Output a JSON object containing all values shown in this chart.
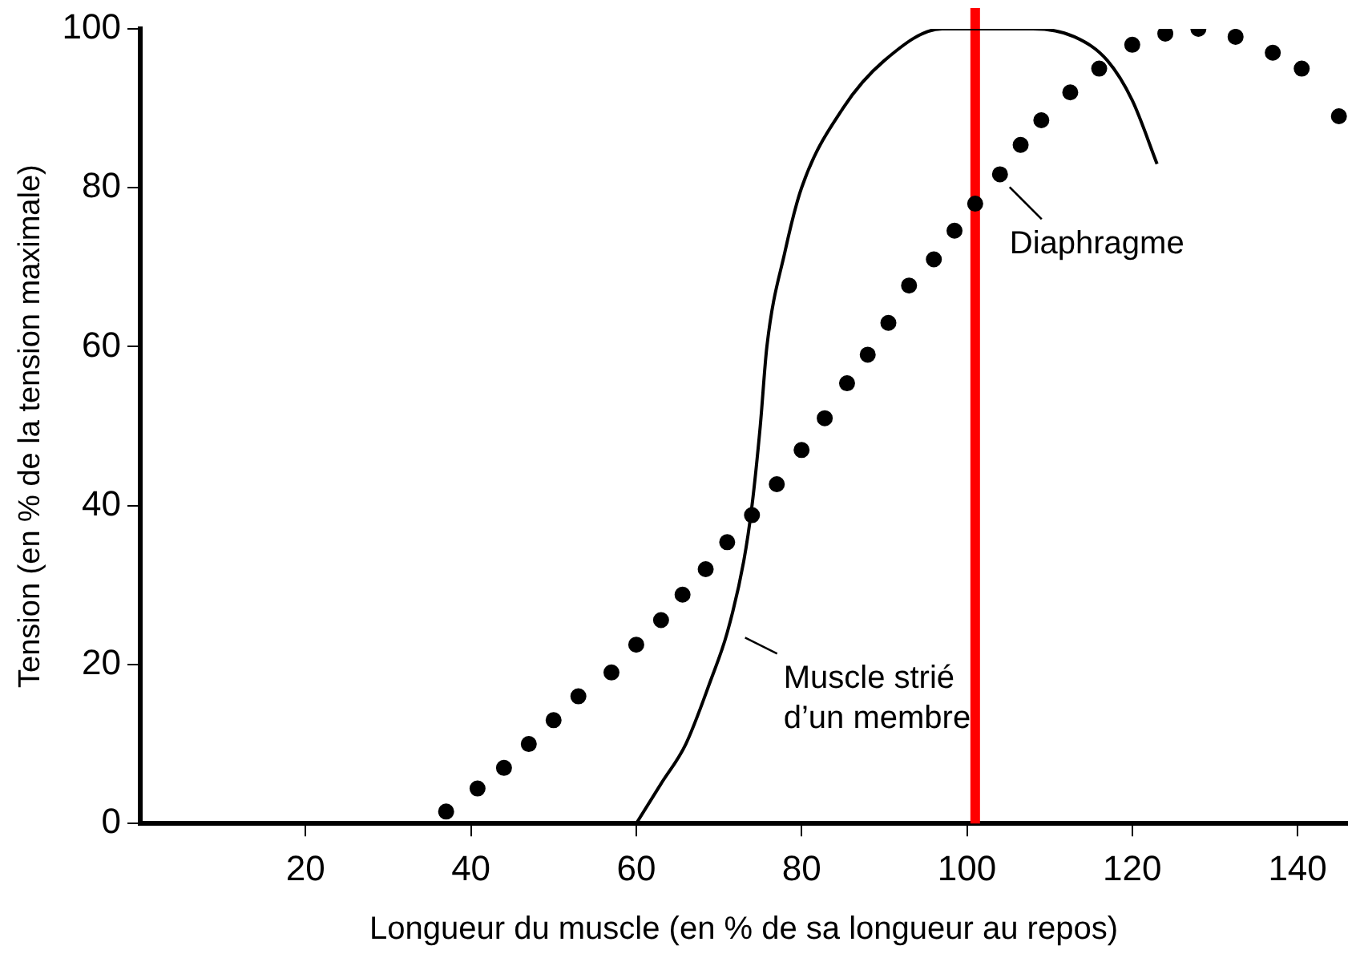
{
  "chart_data": {
    "type": "line",
    "xlabel": "Longueur du muscle (en % de sa longueur au repos)",
    "ylabel": "Tension (en % de la tension maximale)",
    "xlim": [
      0,
      146
    ],
    "xticks": [
      20,
      40,
      60,
      80,
      100,
      120,
      140
    ],
    "ylim": [
      0,
      100
    ],
    "yticks": [
      0,
      20,
      40,
      60,
      80,
      100
    ],
    "grid": false,
    "legend": false,
    "series": [
      {
        "color": "#000000",
        "marker": "none",
        "line_style": "solid",
        "x": [
          60,
          63,
          66,
          69,
          71,
          73,
          74,
          75,
          75.8,
          78,
          80,
          85,
          90,
          97,
          102,
          108,
          113,
          117,
          120,
          123
        ],
        "values": [
          0,
          5,
          10,
          18,
          24,
          33,
          40,
          50,
          60,
          72,
          80,
          90,
          96,
          100,
          100,
          100,
          99,
          96,
          91,
          83
        ]
      },
      {
        "type": "scatter",
        "color": "#000000",
        "marker": "circle",
        "x": [
          37,
          40.8,
          44,
          47,
          50,
          53,
          57,
          60,
          63,
          65.6,
          68.4,
          71,
          74,
          77,
          80,
          82.8,
          85.5,
          88,
          90.5,
          93,
          96,
          98.5,
          101,
          104,
          106.5,
          109,
          112.5,
          116,
          120,
          124,
          128,
          132.5,
          137,
          140.5,
          145
        ],
        "values": [
          1.5,
          4.4,
          7,
          10,
          13,
          16,
          19,
          22.5,
          25.6,
          28.8,
          32,
          35.4,
          38.8,
          42.7,
          47,
          51,
          55.4,
          59,
          63,
          67.7,
          71,
          74.6,
          78,
          81.7,
          85.4,
          88.5,
          92,
          95,
          98,
          99.4,
          100,
          99,
          97,
          95,
          89
        ]
      }
    ],
    "ref_lines": [
      {
        "axis": "x",
        "value": 101,
        "color": "#ff0000",
        "line_style": "solid"
      }
    ],
    "annotations": [
      {
        "text": "Diaphragme",
        "x": 104,
        "y": 81.7
      },
      {
        "text": "Muscle strié\nd’un membre",
        "x": 72,
        "y": 25
      }
    ]
  }
}
